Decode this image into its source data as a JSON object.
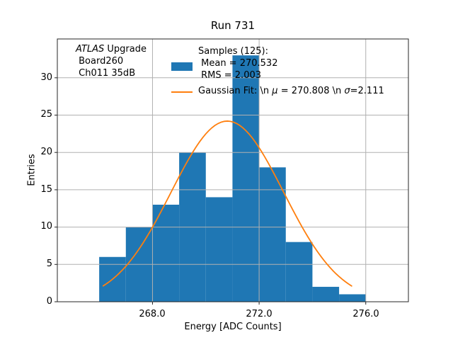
{
  "title": "Run 731",
  "annotation": {
    "line1_italic": "ATLAS",
    "line1_rest": " Upgrade",
    "line2": " Board260",
    "line3": " Ch011 35dB"
  },
  "legend": {
    "samples_line1": "Samples (125):",
    "samples_line2": " Mean = 270.532",
    "samples_line3": " RMS = 2.003",
    "gauss_p1": "Gaussian Fit: \\n ",
    "gauss_mu": "μ",
    "gauss_p2": " = 270.808 \\n ",
    "gauss_sigma": "σ",
    "gauss_p3": "=2.111"
  },
  "axes": {
    "xlabel": "Energy [ADC Counts]",
    "ylabel": "Entries",
    "x_ticks": [
      "268.0",
      "272.0",
      "276.0"
    ],
    "y_ticks": [
      "0",
      "5",
      "10",
      "15",
      "20",
      "25",
      "30"
    ]
  },
  "chart_data": {
    "type": "bar",
    "subtype": "histogram",
    "title": "Run 731",
    "xlabel": "Energy [ADC Counts]",
    "ylabel": "Entries",
    "n_samples": 125,
    "mean": 270.532,
    "rms": 2.003,
    "bin_edges": [
      266,
      267,
      268,
      269,
      270,
      271,
      272,
      273,
      274,
      275,
      276
    ],
    "counts": [
      6,
      10,
      13,
      20,
      14,
      33,
      18,
      8,
      2,
      1
    ],
    "gaussian_fit": {
      "mu": 270.808,
      "sigma": 2.111,
      "amplitude": 24.2,
      "x_start": 266.15,
      "x_end": 275.47
    },
    "xlim": [
      264.43,
      277.6
    ],
    "ylim": [
      0,
      35.2
    ],
    "x_tick_values": [
      268,
      272,
      276
    ],
    "y_tick_values": [
      0,
      5,
      10,
      15,
      20,
      25,
      30
    ],
    "grid": true,
    "legend_position": "upper center",
    "colors": {
      "bar": "#1f77b4",
      "fit_line": "#ff7f0e",
      "grid": "#b0b0b0",
      "frame": "#262626"
    }
  }
}
